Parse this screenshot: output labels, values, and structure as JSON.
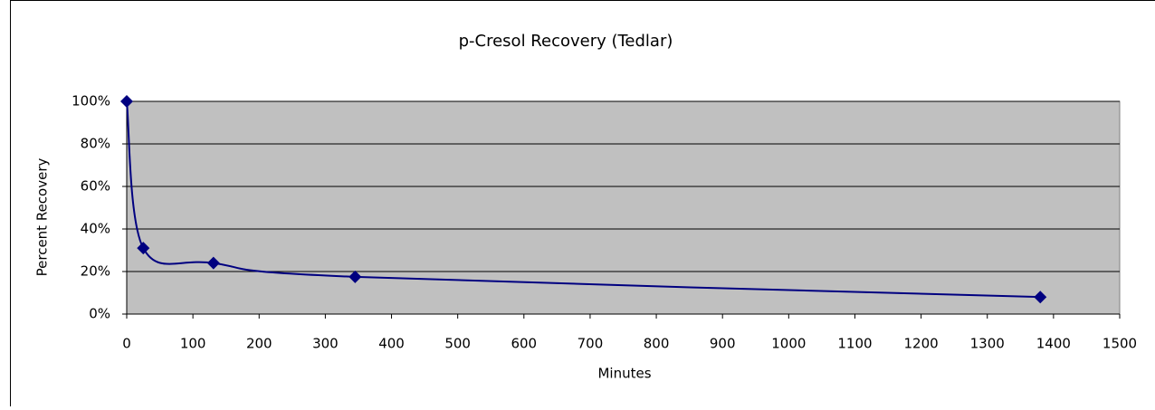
{
  "chart_data": {
    "type": "line",
    "title": "p-Cresol Recovery (Tedlar)",
    "x_label": "Minutes",
    "y_label": "Percent Recovery",
    "x": [
      0,
      25,
      131,
      345,
      1380
    ],
    "series": [
      {
        "name": "p-Cresol",
        "color": "#000080",
        "values": [
          100,
          31,
          24,
          17.5,
          8
        ]
      }
    ],
    "xlim": [
      0,
      1500
    ],
    "xticks": [
      0,
      100,
      200,
      300,
      400,
      500,
      600,
      700,
      800,
      900,
      1000,
      1100,
      1200,
      1300,
      1400,
      1500
    ],
    "ylim": [
      0,
      100
    ],
    "yticks": [
      {
        "value": 0,
        "label": "0%"
      },
      {
        "value": 20,
        "label": "20%"
      },
      {
        "value": 40,
        "label": "40%"
      },
      {
        "value": 60,
        "label": "60%"
      },
      {
        "value": 80,
        "label": "80%"
      },
      {
        "value": 100,
        "label": "100%"
      }
    ],
    "grid": true,
    "smooth": true
  }
}
